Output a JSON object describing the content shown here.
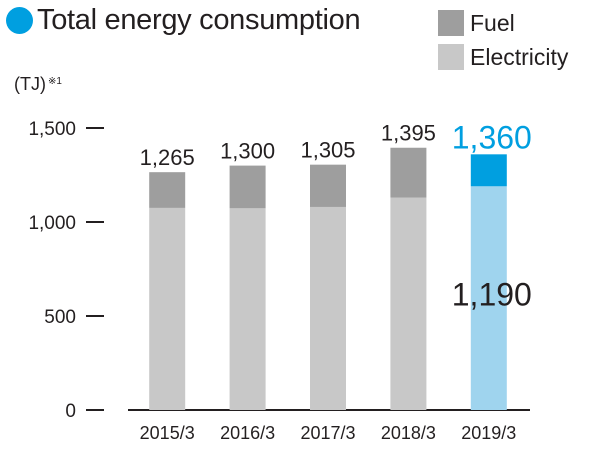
{
  "chart_data": {
    "type": "bar",
    "stacked": true,
    "title": "Total energy consumption",
    "unit_label": "(TJ)",
    "unit_note": "※1",
    "categories": [
      "2015/3",
      "2016/3",
      "2017/3",
      "2018/3",
      "2019/3"
    ],
    "series": [
      {
        "name": "Electricity",
        "values": [
          1075,
          1073,
          1080,
          1130,
          1190
        ]
      },
      {
        "name": "Fuel",
        "values": [
          190,
          227,
          225,
          265,
          170
        ]
      }
    ],
    "totals": [
      1265,
      1300,
      1305,
      1395,
      1360
    ],
    "total_labels": [
      "1,265",
      "1,300",
      "1,305",
      "1,395",
      "1,360"
    ],
    "highlight_index": 4,
    "highlight_segment_label": "1,190",
    "yticks": [
      0,
      500,
      1000,
      1500
    ],
    "ytick_labels": [
      "0",
      "500",
      "1,000",
      "1,500"
    ],
    "ylim": [
      0,
      1500
    ],
    "legend": [
      {
        "name": "Fuel",
        "color": "#9e9e9e"
      },
      {
        "name": "Electricity",
        "color": "#c8c8c8"
      }
    ],
    "colors": {
      "fuel": "#9e9e9e",
      "electricity": "#c8c8c8",
      "highlight_fuel": "#009fe0",
      "highlight_electricity": "#9fd4ee",
      "highlight_text": "#009fe0",
      "text": "#231f20"
    }
  }
}
